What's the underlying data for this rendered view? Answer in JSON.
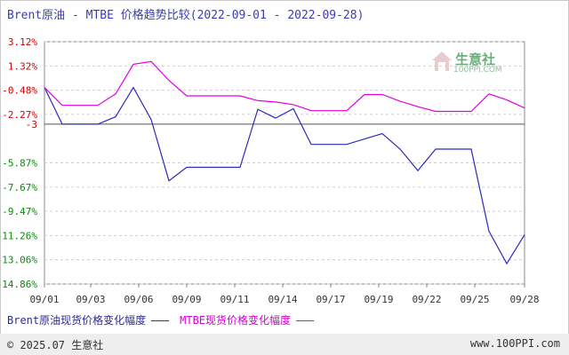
{
  "title": "Brent原油 - MTBE 价格趋势比较(2022-09-01 - 2022-09-28)",
  "watermark": {
    "name": "生意社",
    "url": "100PPI.COM"
  },
  "legend": {
    "series1": "Brent原油现货价格变化幅度",
    "series2": "MTBE现货价格变化幅度"
  },
  "footer": {
    "copyright": "© 2025.07 生意社",
    "site": "www.100PPI.com"
  },
  "chart_data": {
    "type": "line",
    "title": "Brent原油 - MTBE 价格趋势比较(2022-09-01 - 2022-09-28)",
    "ylim": [
      -14.86,
      3.12
    ],
    "y_ticks": [
      "3.12%",
      "1.32%",
      "-0.48%",
      "-2.27%",
      "-3",
      "-5.87%",
      "-7.67%",
      "-9.47%",
      "-11.26%",
      "-13.06%",
      "-14.86%"
    ],
    "y_tick_values": [
      3.12,
      1.32,
      -0.48,
      -2.27,
      -3,
      -5.87,
      -7.67,
      -9.47,
      -11.26,
      -13.06,
      -14.86
    ],
    "x_ticks": [
      "09/01",
      "09/03",
      "09/06",
      "09/09",
      "09/11",
      "09/14",
      "09/17",
      "09/19",
      "09/22",
      "09/25",
      "09/28"
    ],
    "x_tick_days": [
      1,
      3.6,
      6.3,
      9,
      11.7,
      14.4,
      17.1,
      19.8,
      22.5,
      25.2,
      28
    ],
    "series": [
      {
        "name": "Brent原油现货价格变化幅度",
        "color": "#2b2bb8",
        "x": [
          1,
          2,
          3,
          4,
          5,
          6,
          7,
          8,
          9,
          10,
          11,
          12,
          13,
          14,
          15,
          16,
          17,
          18,
          19,
          20,
          21,
          22,
          23,
          24,
          25,
          26,
          27,
          28
        ],
        "values": [
          -0.28,
          -3.0,
          -3.0,
          -3.0,
          -2.45,
          -0.28,
          -2.65,
          -7.2,
          -6.2,
          -6.2,
          -6.2,
          -6.2,
          -1.9,
          -2.55,
          -1.85,
          -4.5,
          -4.5,
          -4.5,
          -4.1,
          -3.7,
          -4.85,
          -6.45,
          -4.85,
          -4.85,
          -4.85,
          -10.95,
          -13.35,
          -11.2
        ]
      },
      {
        "name": "MTBE现货价格变化幅度",
        "color": "#e000e0",
        "x": [
          1,
          2,
          3,
          4,
          5,
          6,
          7,
          8,
          9,
          10,
          11,
          12,
          13,
          14,
          15,
          16,
          17,
          18,
          19,
          20,
          21,
          22,
          23,
          24,
          25,
          26,
          27,
          28
        ],
        "values": [
          -0.28,
          -1.6,
          -1.6,
          -1.6,
          -0.75,
          1.45,
          1.65,
          0.25,
          -0.9,
          -0.9,
          -0.9,
          -0.9,
          -1.25,
          -1.35,
          -1.55,
          -2.0,
          -2.0,
          -2.0,
          -0.8,
          -0.8,
          -1.3,
          -1.7,
          -2.05,
          -2.05,
          -2.05,
          -0.75,
          -1.2,
          -1.8
        ]
      }
    ],
    "grid": "horizontal dashed",
    "legend_position": "bottom-left"
  }
}
